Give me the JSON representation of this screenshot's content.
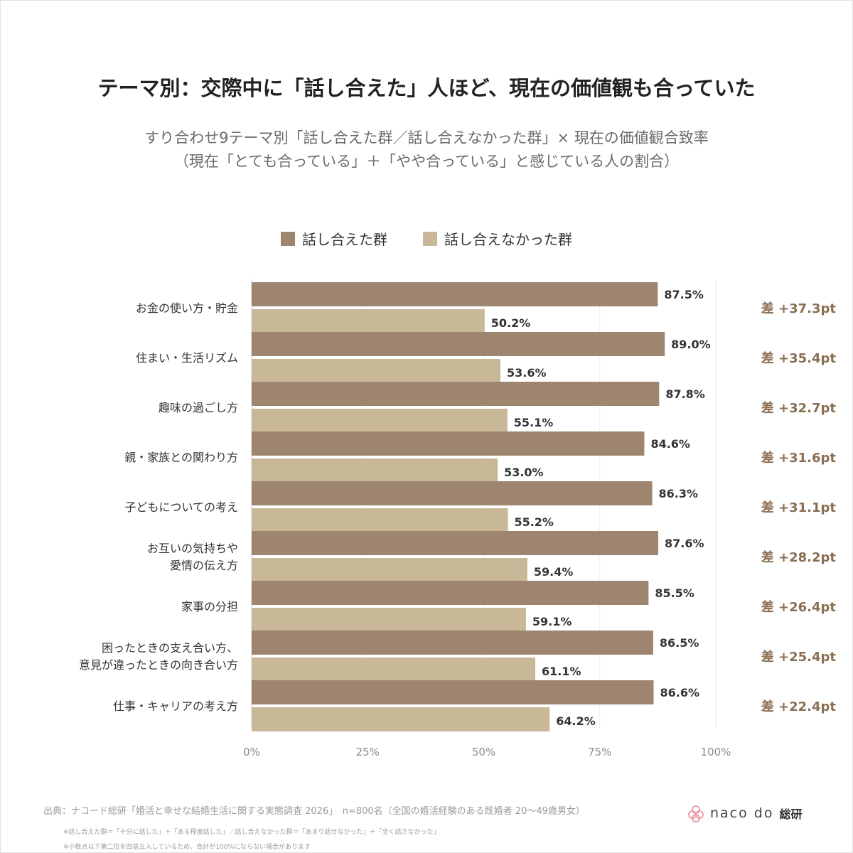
{
  "title": "テーマ別：交際中に「話し合えた」人ほど、現在の価値観も合っていた",
  "subtitle_line1": "すり合わせ9テーマ別「話し合えた群／話し合えなかった群」× 現在の価値観合致率",
  "subtitle_line2": "（現在「とても合っている」＋「やや合っている」と感じている人の割合）",
  "colors": {
    "group_a": "#9e8570",
    "group_b": "#c8b898",
    "diff": "#8a6e52"
  },
  "chart_data": {
    "type": "bar",
    "orientation": "horizontal",
    "categories": [
      [
        "お金の使い方・貯金"
      ],
      [
        "住まい・生活リズム"
      ],
      [
        "趣味の過ごし方"
      ],
      [
        "親・家族との関わり方"
      ],
      [
        "子どもについての考え"
      ],
      [
        "お互いの気持ちや",
        "愛情の伝え方"
      ],
      [
        "家事の分担"
      ],
      [
        "困ったときの支え合い方、",
        "意見が違ったときの向き合い方"
      ],
      [
        "仕事・キャリアの考え方"
      ]
    ],
    "series": [
      {
        "name": "話し合えた群",
        "values": [
          87.5,
          89.0,
          87.8,
          84.6,
          86.3,
          87.6,
          85.5,
          86.5,
          86.6
        ]
      },
      {
        "name": "話し合えなかった群",
        "values": [
          50.2,
          53.6,
          55.1,
          53.0,
          55.2,
          59.4,
          59.1,
          61.1,
          64.2
        ]
      }
    ],
    "value_labels": [
      [
        "87.5%",
        "89.0%",
        "87.8%",
        "84.6%",
        "86.3%",
        "87.6%",
        "85.5%",
        "86.5%",
        "86.6%"
      ],
      [
        "50.2%",
        "53.6%",
        "55.1%",
        "53.0%",
        "55.2%",
        "59.4%",
        "59.1%",
        "61.1%",
        "64.2%"
      ]
    ],
    "diff_labels": [
      "差 +37.3pt",
      "差 +35.4pt",
      "差 +32.7pt",
      "差 +31.6pt",
      "差 +31.1pt",
      "差 +28.2pt",
      "差 +26.4pt",
      "差 +25.4pt",
      "差 +22.4pt"
    ],
    "xlim": [
      0,
      100
    ],
    "xticks": [
      "0%",
      "25%",
      "50%",
      "75%",
      "100%"
    ],
    "grid": true,
    "legend": "top"
  },
  "footer": {
    "source": "出典：ナコード総研「婚活と幸せな結婚生活に関する実態調査 2026」　n=800名（全国の婚活経験のある既婚者 20〜49歳男女）",
    "note1": "※話し合えた群＝「十分に話した」＋「ある程度話した」／話し合えなかった群＝「あまり話せなかった」＋「全く話さなかった」",
    "note2": "※小数点以下第二位を四捨五入しているため、合計が100%にならない場合があります"
  },
  "logo": {
    "text": "naco do",
    "kanji": "総研",
    "icon": "flower-icon"
  }
}
